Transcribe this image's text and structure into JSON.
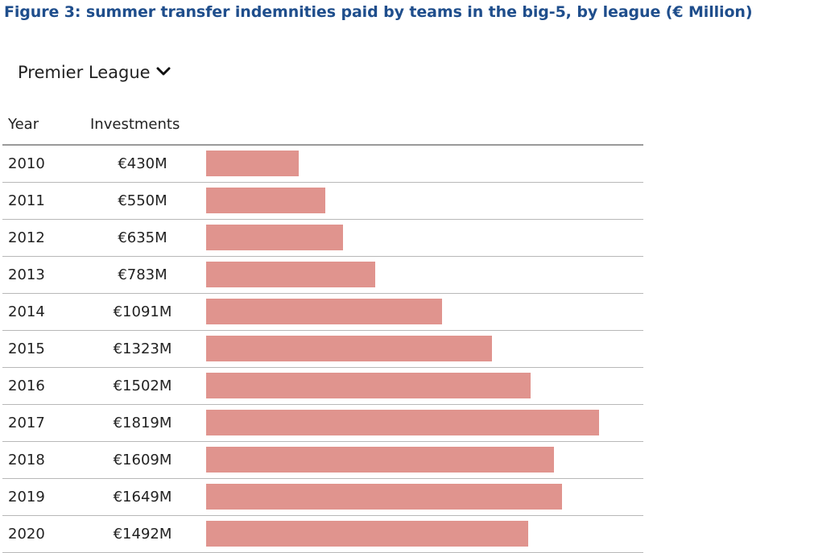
{
  "title": "Figure 3: summer transfer indemnities paid by teams in the big-5, by league (€ Million)",
  "league_selector": {
    "selected": "Premier League",
    "icon": "chevron-down-icon"
  },
  "table": {
    "headers": {
      "year": "Year",
      "investments": "Investments"
    },
    "bar_color": "#e0948e"
  },
  "chart_data": {
    "type": "bar",
    "orientation": "horizontal",
    "title": "Figure 3: summer transfer indemnities paid by teams in the big-5, by league (€ Million)",
    "categories": [
      "2010",
      "2011",
      "2012",
      "2013",
      "2014",
      "2015",
      "2016",
      "2017",
      "2018",
      "2019",
      "2020"
    ],
    "values": [
      430,
      550,
      635,
      783,
      1091,
      1323,
      1502,
      1819,
      1609,
      1649,
      1492
    ],
    "labels": [
      "€430M",
      "€550M",
      "€635M",
      "€783M",
      "€1091M",
      "€1323M",
      "€1502M",
      "€1819M",
      "€1609M",
      "€1649M",
      "€1492M"
    ],
    "xlim": [
      0,
      1819
    ],
    "grid": false,
    "legend": false
  }
}
